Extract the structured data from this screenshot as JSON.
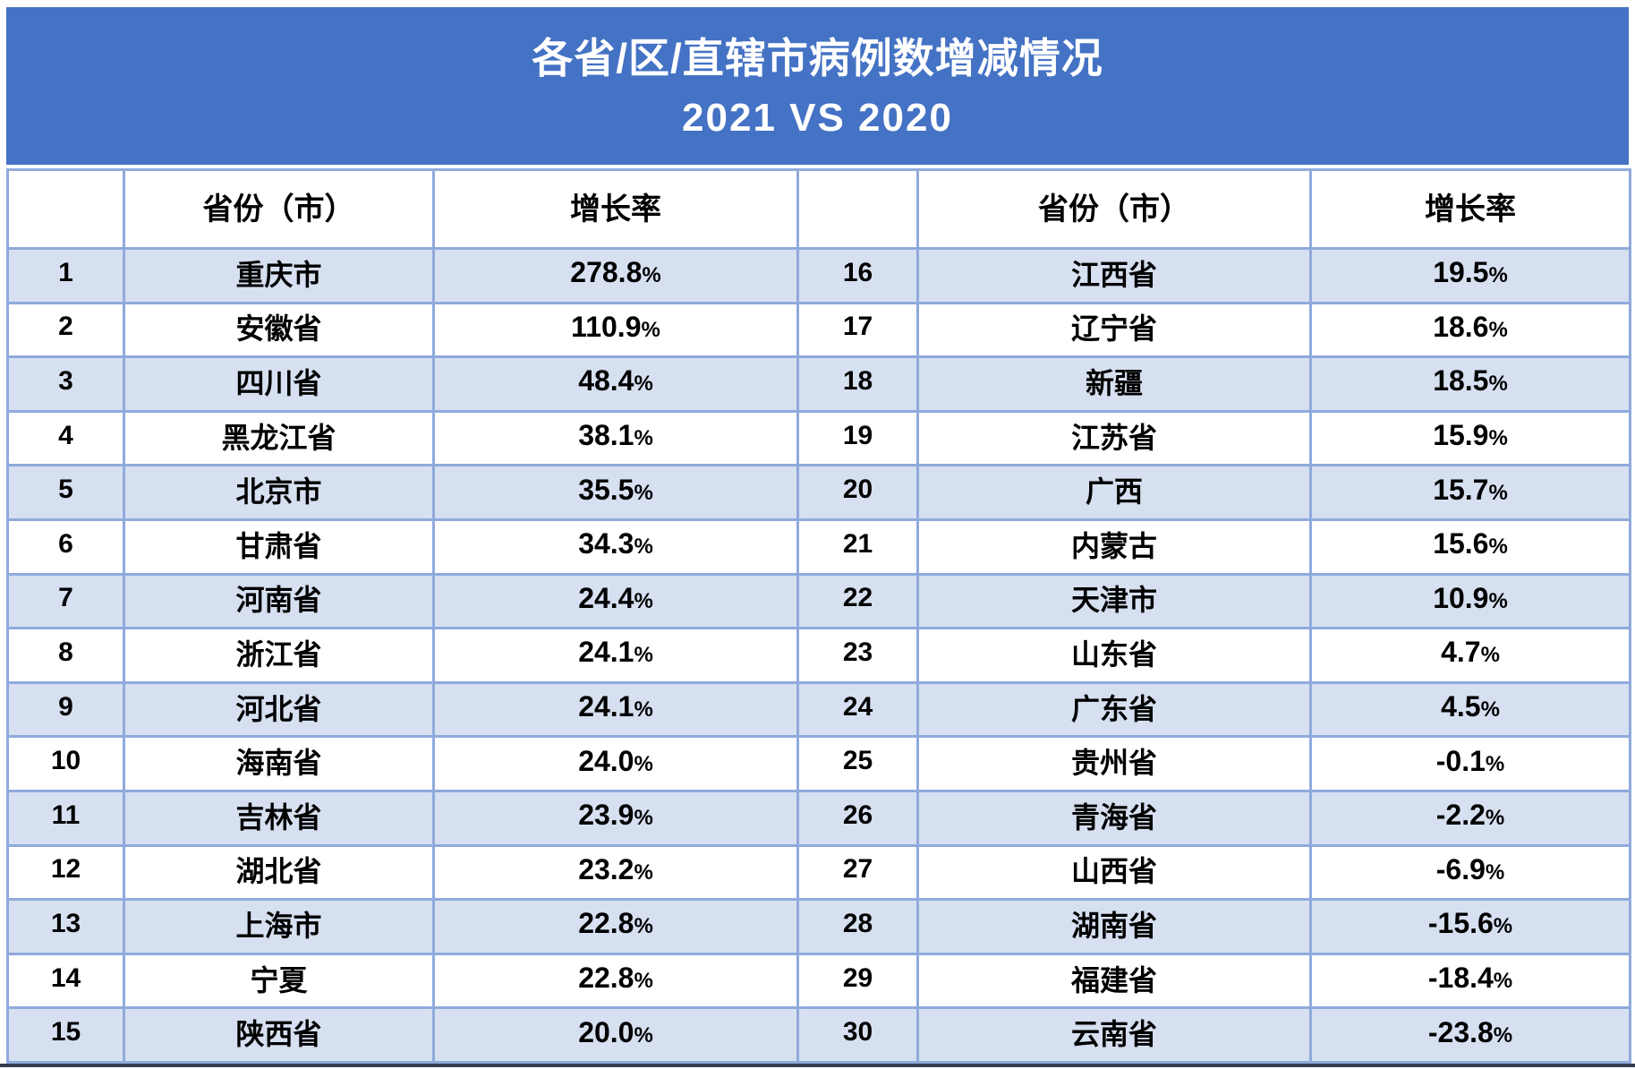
{
  "title": {
    "line1": "各省/区/直辖市病例数增减情况",
    "line2": "2021 VS 2020"
  },
  "table": {
    "headers": {
      "rank": "",
      "province": "省份（市）",
      "rate": "增长率"
    },
    "left": [
      {
        "rank": "1",
        "province": "重庆市",
        "rate": "278.8%"
      },
      {
        "rank": "2",
        "province": "安徽省",
        "rate": "110.9%"
      },
      {
        "rank": "3",
        "province": "四川省",
        "rate": "48.4%"
      },
      {
        "rank": "4",
        "province": "黑龙江省",
        "rate": "38.1%"
      },
      {
        "rank": "5",
        "province": "北京市",
        "rate": "35.5%"
      },
      {
        "rank": "6",
        "province": "甘肃省",
        "rate": "34.3%"
      },
      {
        "rank": "7",
        "province": "河南省",
        "rate": "24.4%"
      },
      {
        "rank": "8",
        "province": "浙江省",
        "rate": "24.1%"
      },
      {
        "rank": "9",
        "province": "河北省",
        "rate": "24.1%"
      },
      {
        "rank": "10",
        "province": "海南省",
        "rate": "24.0%"
      },
      {
        "rank": "11",
        "province": "吉林省",
        "rate": "23.9%"
      },
      {
        "rank": "12",
        "province": "湖北省",
        "rate": "23.2%"
      },
      {
        "rank": "13",
        "province": "上海市",
        "rate": "22.8%"
      },
      {
        "rank": "14",
        "province": "宁夏",
        "rate": "22.8%"
      },
      {
        "rank": "15",
        "province": "陕西省",
        "rate": "20.0%"
      }
    ],
    "right": [
      {
        "rank": "16",
        "province": "江西省",
        "rate": "19.5%"
      },
      {
        "rank": "17",
        "province": "辽宁省",
        "rate": "18.6%"
      },
      {
        "rank": "18",
        "province": "新疆",
        "rate": "18.5%"
      },
      {
        "rank": "19",
        "province": "江苏省",
        "rate": "15.9%"
      },
      {
        "rank": "20",
        "province": "广西",
        "rate": "15.7%"
      },
      {
        "rank": "21",
        "province": "内蒙古",
        "rate": "15.6%"
      },
      {
        "rank": "22",
        "province": "天津市",
        "rate": "10.9%"
      },
      {
        "rank": "23",
        "province": "山东省",
        "rate": "4.7%"
      },
      {
        "rank": "24",
        "province": "广东省",
        "rate": "4.5%"
      },
      {
        "rank": "25",
        "province": "贵州省",
        "rate": "-0.1%"
      },
      {
        "rank": "26",
        "province": "青海省",
        "rate": "-2.2%"
      },
      {
        "rank": "27",
        "province": "山西省",
        "rate": "-6.9%"
      },
      {
        "rank": "28",
        "province": "湖南省",
        "rate": "-15.6%"
      },
      {
        "rank": "29",
        "province": "福建省",
        "rate": "-18.4%"
      },
      {
        "rank": "30",
        "province": "云南省",
        "rate": "-23.8%"
      }
    ]
  },
  "colors": {
    "title_background": "#4472C4",
    "banded_row": "#D6E0F1",
    "grid_border": "#8FAADC",
    "bottom_rule": "#333F50",
    "title_text": "#ffffff",
    "cell_text": "#000000"
  }
}
